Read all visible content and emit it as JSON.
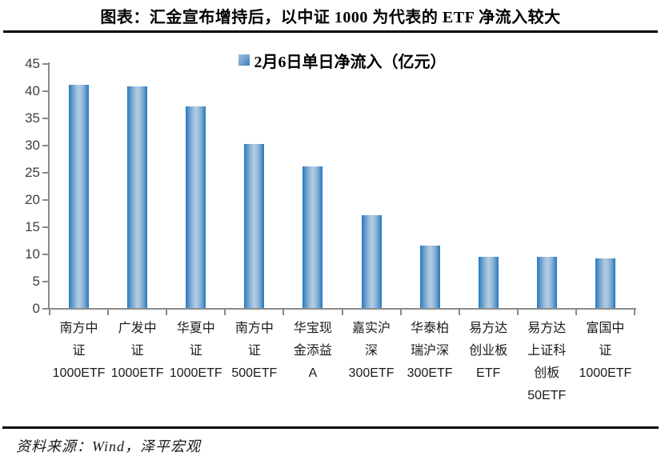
{
  "title": "图表：汇金宣布增持后，以中证 1000 为代表的 ETF 净流入较大",
  "legend": {
    "label": "2月6日单日净流入（亿元）"
  },
  "footer": {
    "source_text": "资料来源：Wind，泽平宏观"
  },
  "colors": {
    "bar_edge": "#1e78be",
    "bar_light": "#afcbe4",
    "axis": "#8a8a8a",
    "rule": "#000000",
    "tick_label": "#3f3f3f"
  },
  "chart_data": {
    "type": "bar",
    "title": "图表：汇金宣布增持后，以中证 1000 为代表的 ETF 净流入较大",
    "legend_entries": [
      "2月6日单日净流入（亿元）"
    ],
    "legend_position": "top-center",
    "grid": false,
    "ylabel": "",
    "xlabel": "",
    "ylim": [
      0,
      45
    ],
    "ytick_step": 5,
    "categories": [
      "南方中证1000ETF",
      "广发中证1000ETF",
      "华夏中证1000ETF",
      "南方中证500ETF",
      "华宝现金添益A",
      "嘉实沪深300ETF",
      "华泰柏瑞沪深300ETF",
      "易方达创业板ETF",
      "易方达上证科创板50ETF",
      "富国中证1000ETF"
    ],
    "category_display": [
      "南方中\n证\n1000ETF",
      "广发中\n证\n1000ETF",
      "华夏中\n证\n1000ETF",
      "南方中\n证\n500ETF",
      "华宝现\n金添益\nA",
      "嘉实沪\n深\n300ETF",
      "华泰柏\n瑞沪深\n300ETF",
      "易方达\n创业板\nETF",
      "易方达\n上证科\n创板\n50ETF",
      "富国中\n证\n1000ETF"
    ],
    "values": [
      41.1,
      40.7,
      37.1,
      30.2,
      26.0,
      17.0,
      11.4,
      9.4,
      9.4,
      9.1
    ]
  }
}
